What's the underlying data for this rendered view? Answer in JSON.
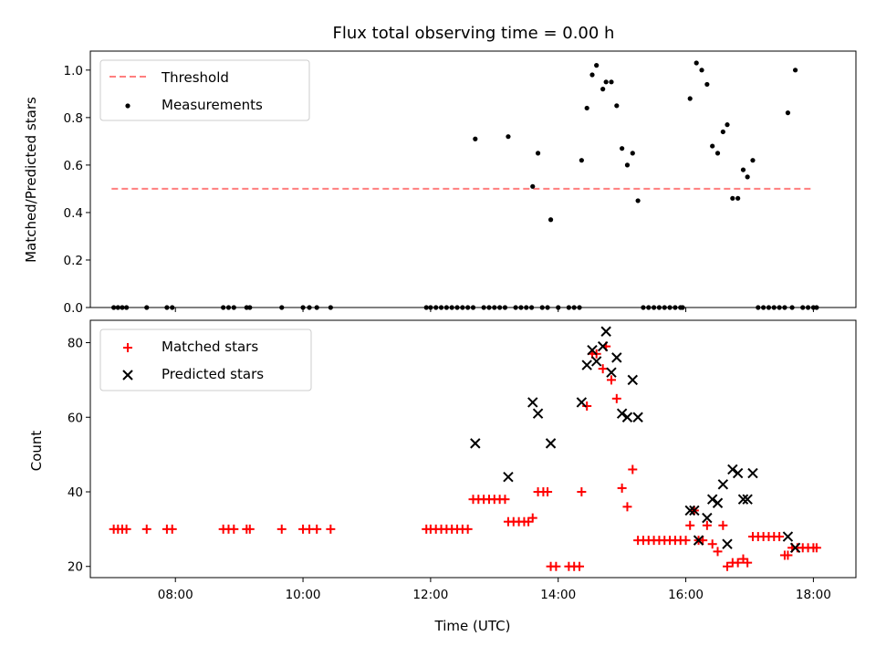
{
  "chart_data": [
    {
      "type": "scatter",
      "title": "Flux total observing time = 0.00 h",
      "ylabel": "Matched/Predicted stars",
      "xlim": [
        "06:40",
        "18:40"
      ],
      "ylim": [
        0,
        1.08
      ],
      "yticks": [
        "0.0",
        "0.2",
        "0.4",
        "0.6",
        "0.8",
        "1.0"
      ],
      "legend_position": "top-left",
      "threshold": {
        "name": "Threshold",
        "value": 0.5,
        "x_range": [
          "07:00",
          "18:00"
        ],
        "color": "#ff7f7f",
        "style": "dashed"
      },
      "series": [
        {
          "name": "Measurements",
          "color": "#000000",
          "marker": "dot",
          "points": [
            [
              "07:02",
              0
            ],
            [
              "07:06",
              0
            ],
            [
              "07:10",
              0
            ],
            [
              "07:14",
              0
            ],
            [
              "07:33",
              0
            ],
            [
              "07:52",
              0
            ],
            [
              "07:57",
              0
            ],
            [
              "08:45",
              0
            ],
            [
              "08:50",
              0
            ],
            [
              "08:55",
              0
            ],
            [
              "09:07",
              0
            ],
            [
              "09:10",
              0
            ],
            [
              "09:40",
              0
            ],
            [
              "10:00",
              0
            ],
            [
              "10:06",
              0
            ],
            [
              "10:13",
              0
            ],
            [
              "10:26",
              0
            ],
            [
              "11:56",
              0
            ],
            [
              "12:00",
              0
            ],
            [
              "12:05",
              0
            ],
            [
              "12:10",
              0
            ],
            [
              "12:15",
              0
            ],
            [
              "12:20",
              0
            ],
            [
              "12:25",
              0
            ],
            [
              "12:30",
              0
            ],
            [
              "12:35",
              0
            ],
            [
              "12:40",
              0
            ],
            [
              "12:42",
              0.71
            ],
            [
              "12:50",
              0
            ],
            [
              "12:55",
              0
            ],
            [
              "13:00",
              0
            ],
            [
              "13:05",
              0
            ],
            [
              "13:10",
              0
            ],
            [
              "13:13",
              0.72
            ],
            [
              "13:20",
              0
            ],
            [
              "13:25",
              0
            ],
            [
              "13:30",
              0
            ],
            [
              "13:35",
              0
            ],
            [
              "13:36",
              0.51
            ],
            [
              "13:41",
              0.65
            ],
            [
              "13:45",
              0
            ],
            [
              "13:50",
              0
            ],
            [
              "13:53",
              0.37
            ],
            [
              "14:00",
              0
            ],
            [
              "14:10",
              0
            ],
            [
              "14:15",
              0
            ],
            [
              "14:20",
              0
            ],
            [
              "14:22",
              0.62
            ],
            [
              "14:27",
              0.84
            ],
            [
              "14:32",
              0.98
            ],
            [
              "14:36",
              1.02
            ],
            [
              "14:42",
              0.92
            ],
            [
              "14:45",
              0.95
            ],
            [
              "14:50",
              0.95
            ],
            [
              "14:55",
              0.85
            ],
            [
              "15:00",
              0.67
            ],
            [
              "15:05",
              0.6
            ],
            [
              "15:10",
              0.65
            ],
            [
              "15:15",
              0.45
            ],
            [
              "15:20",
              0
            ],
            [
              "15:25",
              0
            ],
            [
              "15:30",
              0
            ],
            [
              "15:35",
              0
            ],
            [
              "15:40",
              0
            ],
            [
              "15:45",
              0
            ],
            [
              "15:50",
              0
            ],
            [
              "15:55",
              0
            ],
            [
              "15:57",
              0
            ],
            [
              "16:04",
              0.88
            ],
            [
              "16:10",
              1.03
            ],
            [
              "16:15",
              1.0
            ],
            [
              "16:20",
              0.94
            ],
            [
              "16:25",
              0.68
            ],
            [
              "16:30",
              0.65
            ],
            [
              "16:35",
              0.74
            ],
            [
              "16:39",
              0.77
            ],
            [
              "16:44",
              0.46
            ],
            [
              "16:49",
              0.46
            ],
            [
              "16:54",
              0.58
            ],
            [
              "16:58",
              0.55
            ],
            [
              "17:03",
              0.62
            ],
            [
              "17:08",
              0
            ],
            [
              "17:13",
              0
            ],
            [
              "17:18",
              0
            ],
            [
              "17:23",
              0
            ],
            [
              "17:28",
              0
            ],
            [
              "17:33",
              0
            ],
            [
              "17:36",
              0.82
            ],
            [
              "17:40",
              0
            ],
            [
              "17:43",
              1.0
            ],
            [
              "17:50",
              0
            ],
            [
              "17:55",
              0
            ],
            [
              "18:00",
              0
            ],
            [
              "18:03",
              0
            ]
          ]
        }
      ]
    },
    {
      "type": "scatter",
      "title": "",
      "xlabel": "Time (UTC)",
      "ylabel": "Count",
      "xlim": [
        "06:40",
        "18:40"
      ],
      "ylim": [
        17,
        86
      ],
      "xticks": [
        "08:00",
        "10:00",
        "12:00",
        "14:00",
        "16:00",
        "18:00"
      ],
      "yticks": [
        "20",
        "40",
        "60",
        "80"
      ],
      "legend_position": "top-left",
      "series": [
        {
          "name": "Matched stars",
          "color": "#ff0000",
          "marker": "plus",
          "points": [
            [
              "07:02",
              30
            ],
            [
              "07:06",
              30
            ],
            [
              "07:10",
              30
            ],
            [
              "07:14",
              30
            ],
            [
              "07:33",
              30
            ],
            [
              "07:52",
              30
            ],
            [
              "07:57",
              30
            ],
            [
              "08:45",
              30
            ],
            [
              "08:50",
              30
            ],
            [
              "08:55",
              30
            ],
            [
              "09:07",
              30
            ],
            [
              "09:10",
              30
            ],
            [
              "09:40",
              30
            ],
            [
              "10:00",
              30
            ],
            [
              "10:06",
              30
            ],
            [
              "10:13",
              30
            ],
            [
              "10:26",
              30
            ],
            [
              "11:56",
              30
            ],
            [
              "12:00",
              30
            ],
            [
              "12:05",
              30
            ],
            [
              "12:10",
              30
            ],
            [
              "12:15",
              30
            ],
            [
              "12:20",
              30
            ],
            [
              "12:25",
              30
            ],
            [
              "12:30",
              30
            ],
            [
              "12:35",
              30
            ],
            [
              "12:40",
              38
            ],
            [
              "12:45",
              38
            ],
            [
              "12:50",
              38
            ],
            [
              "12:55",
              38
            ],
            [
              "13:00",
              38
            ],
            [
              "13:05",
              38
            ],
            [
              "13:10",
              38
            ],
            [
              "13:13",
              32
            ],
            [
              "13:18",
              32
            ],
            [
              "13:23",
              32
            ],
            [
              "13:28",
              32
            ],
            [
              "13:32",
              32
            ],
            [
              "13:36",
              33
            ],
            [
              "13:41",
              40
            ],
            [
              "13:46",
              40
            ],
            [
              "13:50",
              40
            ],
            [
              "13:53",
              20
            ],
            [
              "13:58",
              20
            ],
            [
              "14:10",
              20
            ],
            [
              "14:15",
              20
            ],
            [
              "14:20",
              20
            ],
            [
              "14:22",
              40
            ],
            [
              "14:27",
              63
            ],
            [
              "14:32",
              77
            ],
            [
              "14:36",
              77
            ],
            [
              "14:42",
              73
            ],
            [
              "14:45",
              79
            ],
            [
              "14:50",
              70
            ],
            [
              "14:55",
              65
            ],
            [
              "15:00",
              41
            ],
            [
              "15:05",
              36
            ],
            [
              "15:10",
              46
            ],
            [
              "15:15",
              27
            ],
            [
              "15:20",
              27
            ],
            [
              "15:25",
              27
            ],
            [
              "15:30",
              27
            ],
            [
              "15:35",
              27
            ],
            [
              "15:40",
              27
            ],
            [
              "15:45",
              27
            ],
            [
              "15:50",
              27
            ],
            [
              "15:55",
              27
            ],
            [
              "16:00",
              27
            ],
            [
              "16:04",
              31
            ],
            [
              "16:08",
              35
            ],
            [
              "16:12",
              27
            ],
            [
              "16:16",
              27
            ],
            [
              "16:20",
              31
            ],
            [
              "16:25",
              26
            ],
            [
              "16:30",
              24
            ],
            [
              "16:35",
              31
            ],
            [
              "16:39",
              20
            ],
            [
              "16:44",
              21
            ],
            [
              "16:49",
              21
            ],
            [
              "16:54",
              22
            ],
            [
              "16:58",
              21
            ],
            [
              "17:03",
              28
            ],
            [
              "17:08",
              28
            ],
            [
              "17:13",
              28
            ],
            [
              "17:18",
              28
            ],
            [
              "17:23",
              28
            ],
            [
              "17:28",
              28
            ],
            [
              "17:33",
              23
            ],
            [
              "17:36",
              23
            ],
            [
              "17:40",
              25
            ],
            [
              "17:45",
              25
            ],
            [
              "17:50",
              25
            ],
            [
              "17:55",
              25
            ],
            [
              "18:00",
              25
            ],
            [
              "18:03",
              25
            ]
          ]
        },
        {
          "name": "Predicted stars",
          "color": "#000000",
          "marker": "x",
          "points": [
            [
              "12:42",
              53
            ],
            [
              "13:13",
              44
            ],
            [
              "13:36",
              64
            ],
            [
              "13:41",
              61
            ],
            [
              "13:53",
              53
            ],
            [
              "14:22",
              64
            ],
            [
              "14:27",
              74
            ],
            [
              "14:32",
              78
            ],
            [
              "14:36",
              75
            ],
            [
              "14:42",
              79
            ],
            [
              "14:45",
              83
            ],
            [
              "14:50",
              72
            ],
            [
              "14:55",
              76
            ],
            [
              "15:00",
              61
            ],
            [
              "15:05",
              60
            ],
            [
              "15:10",
              70
            ],
            [
              "15:15",
              60
            ],
            [
              "16:04",
              35
            ],
            [
              "16:08",
              35
            ],
            [
              "16:12",
              27
            ],
            [
              "16:20",
              33
            ],
            [
              "16:25",
              38
            ],
            [
              "16:30",
              37
            ],
            [
              "16:35",
              42
            ],
            [
              "16:39",
              26
            ],
            [
              "16:44",
              46
            ],
            [
              "16:49",
              45
            ],
            [
              "16:54",
              38
            ],
            [
              "16:58",
              38
            ],
            [
              "17:03",
              45
            ],
            [
              "17:36",
              28
            ],
            [
              "17:43",
              25
            ]
          ]
        }
      ]
    }
  ]
}
